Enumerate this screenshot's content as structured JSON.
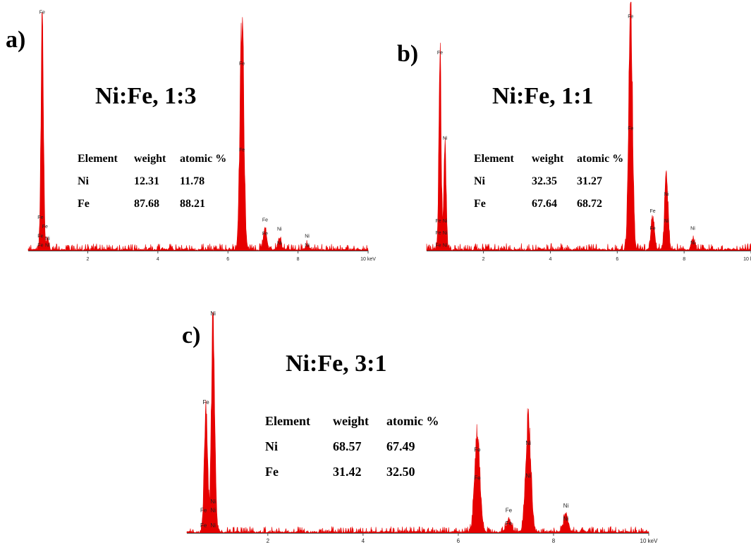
{
  "chart_data": [
    {
      "type": "line",
      "panel": "a)",
      "title": "Ni:Fe, 1:3",
      "xlabel": "",
      "ylabel": "",
      "x_unit": "keV",
      "xlim": [
        0.3,
        10.0
      ],
      "xticks": [
        {
          "value": 2,
          "label": "2"
        },
        {
          "value": 4,
          "label": "4"
        },
        {
          "value": 6,
          "label": "6"
        },
        {
          "value": 8,
          "label": "8"
        },
        {
          "value": 10,
          "label": "10 keV"
        }
      ],
      "line_color": "#e60000",
      "peaks": [
        {
          "x": 0.7,
          "height": 1.0,
          "width": 0.035
        },
        {
          "x": 0.85,
          "height": 0.05,
          "width": 0.03
        },
        {
          "x": 6.4,
          "height": 0.97,
          "width": 0.055
        },
        {
          "x": 7.06,
          "height": 0.08,
          "width": 0.05
        },
        {
          "x": 7.47,
          "height": 0.05,
          "width": 0.05
        },
        {
          "x": 8.26,
          "height": 0.02,
          "width": 0.05
        }
      ],
      "peak_labels": [
        {
          "x": 0.7,
          "y": 1.01,
          "text": "Fe"
        },
        {
          "x": 0.65,
          "y": 0.13,
          "text": "Fe"
        },
        {
          "x": 0.78,
          "y": 0.09,
          "text": "Fe"
        },
        {
          "x": 0.65,
          "y": 0.05,
          "text": "Fe"
        },
        {
          "x": 0.85,
          "y": 0.04,
          "text": "Ni"
        },
        {
          "x": 0.65,
          "y": 0.01,
          "text": "Fe"
        },
        {
          "x": 0.85,
          "y": 0.01,
          "text": "Ni"
        },
        {
          "x": 6.4,
          "y": 0.79,
          "text": "Fe"
        },
        {
          "x": 6.4,
          "y": 0.42,
          "text": "Fe"
        },
        {
          "x": 7.06,
          "y": 0.12,
          "text": "Fe"
        },
        {
          "x": 7.06,
          "y": 0.06,
          "text": "Fe"
        },
        {
          "x": 7.47,
          "y": 0.08,
          "text": "Ni"
        },
        {
          "x": 7.47,
          "y": 0.02,
          "text": "Ni"
        },
        {
          "x": 8.26,
          "y": 0.05,
          "text": "Ni"
        },
        {
          "x": 8.26,
          "y": 0.01,
          "text": "Ni"
        }
      ],
      "table": {
        "headers": [
          "Element",
          "weight",
          "atomic %"
        ],
        "rows": [
          [
            "Ni",
            "12.31",
            "11.78"
          ],
          [
            "Fe",
            "87.68",
            "88.21"
          ]
        ]
      }
    },
    {
      "type": "line",
      "panel": "b)",
      "title": "Ni:Fe, 1:1",
      "xlabel": "",
      "ylabel": "",
      "x_unit": "keV",
      "xlim": [
        0.3,
        10.0
      ],
      "xticks": [
        {
          "value": 2,
          "label": "2"
        },
        {
          "value": 4,
          "label": "4"
        },
        {
          "value": 6,
          "label": "6"
        },
        {
          "value": 8,
          "label": "8"
        },
        {
          "value": 10,
          "label": "10 keV"
        }
      ],
      "line_color": "#e60000",
      "peaks": [
        {
          "x": 0.7,
          "height": 0.78,
          "width": 0.035
        },
        {
          "x": 0.85,
          "height": 0.43,
          "width": 0.035
        },
        {
          "x": 6.4,
          "height": 1.0,
          "width": 0.055
        },
        {
          "x": 7.06,
          "height": 0.13,
          "width": 0.05
        },
        {
          "x": 7.47,
          "height": 0.3,
          "width": 0.05
        },
        {
          "x": 8.26,
          "height": 0.04,
          "width": 0.05
        }
      ],
      "peak_labels": [
        {
          "x": 0.7,
          "y": 0.8,
          "text": "Fe"
        },
        {
          "x": 0.85,
          "y": 0.45,
          "text": "Ni"
        },
        {
          "x": 0.65,
          "y": 0.11,
          "text": "Fe"
        },
        {
          "x": 0.85,
          "y": 0.11,
          "text": "Ni"
        },
        {
          "x": 0.65,
          "y": 0.06,
          "text": "Fe"
        },
        {
          "x": 0.85,
          "y": 0.06,
          "text": "Ni"
        },
        {
          "x": 0.65,
          "y": 0.01,
          "text": "Fe"
        },
        {
          "x": 0.85,
          "y": 0.01,
          "text": "Ni"
        },
        {
          "x": 6.4,
          "y": 0.95,
          "text": "Fe"
        },
        {
          "x": 6.4,
          "y": 0.49,
          "text": "Fe"
        },
        {
          "x": 7.06,
          "y": 0.15,
          "text": "Fe"
        },
        {
          "x": 7.06,
          "y": 0.08,
          "text": "Fe"
        },
        {
          "x": 7.47,
          "y": 0.22,
          "text": "Ni"
        },
        {
          "x": 7.47,
          "y": 0.11,
          "text": "Ni"
        },
        {
          "x": 8.26,
          "y": 0.08,
          "text": "Ni"
        },
        {
          "x": 8.26,
          "y": 0.02,
          "text": "Ni"
        }
      ],
      "table": {
        "headers": [
          "Element",
          "weight",
          "atomic %"
        ],
        "rows": [
          [
            "Ni",
            "32.35",
            "31.27"
          ],
          [
            "Fe",
            "67.64",
            "68.72"
          ]
        ]
      }
    },
    {
      "type": "line",
      "panel": "c)",
      "title": "Ni:Fe, 3:1",
      "xlabel": "",
      "ylabel": "",
      "x_unit": "keV",
      "xlim": [
        0.3,
        10.0
      ],
      "xticks": [
        {
          "value": 2,
          "label": "2"
        },
        {
          "value": 4,
          "label": "4"
        },
        {
          "value": 6,
          "label": "6"
        },
        {
          "value": 8,
          "label": "8"
        },
        {
          "value": 10,
          "label": "10 keV"
        }
      ],
      "line_color": "#e60000",
      "peaks": [
        {
          "x": 0.7,
          "height": 0.57,
          "width": 0.035
        },
        {
          "x": 0.85,
          "height": 0.98,
          "width": 0.035
        },
        {
          "x": 6.4,
          "height": 0.45,
          "width": 0.055
        },
        {
          "x": 7.06,
          "height": 0.06,
          "width": 0.05
        },
        {
          "x": 7.47,
          "height": 0.52,
          "width": 0.055
        },
        {
          "x": 8.26,
          "height": 0.08,
          "width": 0.05
        }
      ],
      "peak_labels": [
        {
          "x": 0.85,
          "y": 1.0,
          "text": "Ni"
        },
        {
          "x": 0.7,
          "y": 0.59,
          "text": "Fe"
        },
        {
          "x": 0.85,
          "y": 0.13,
          "text": "Ni"
        },
        {
          "x": 0.65,
          "y": 0.09,
          "text": "Fe"
        },
        {
          "x": 0.85,
          "y": 0.09,
          "text": "Ni"
        },
        {
          "x": 0.65,
          "y": 0.02,
          "text": "Fe"
        },
        {
          "x": 0.85,
          "y": 0.02,
          "text": "Ni"
        },
        {
          "x": 6.4,
          "y": 0.37,
          "text": "Fe"
        },
        {
          "x": 6.4,
          "y": 0.24,
          "text": "Fe"
        },
        {
          "x": 7.06,
          "y": 0.09,
          "text": "Fe"
        },
        {
          "x": 7.06,
          "y": 0.03,
          "text": "Fe"
        },
        {
          "x": 7.47,
          "y": 0.4,
          "text": "Ni"
        },
        {
          "x": 7.47,
          "y": 0.25,
          "text": "Ni"
        },
        {
          "x": 8.26,
          "y": 0.11,
          "text": "Ni"
        },
        {
          "x": 8.26,
          "y": 0.05,
          "text": "Ni"
        }
      ],
      "table": {
        "headers": [
          "Element",
          "weight",
          "atomic %"
        ],
        "rows": [
          [
            "Ni",
            "68.57",
            "67.49"
          ],
          [
            "Fe",
            "31.42",
            "32.50"
          ]
        ]
      }
    }
  ]
}
